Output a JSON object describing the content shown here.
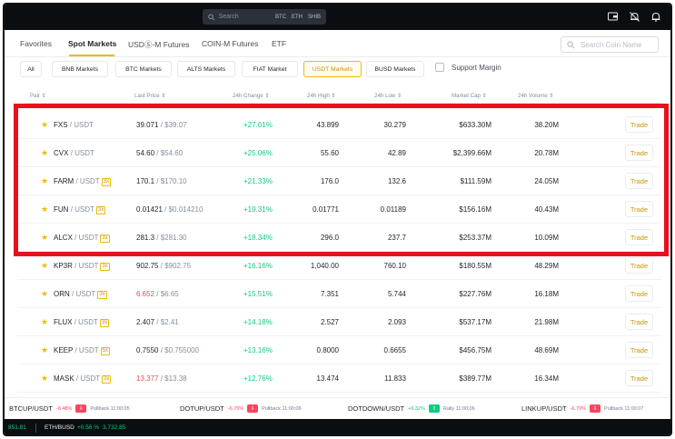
{
  "topbar": {
    "search_placeholder": "Search",
    "tags": [
      "BTC",
      "ETH",
      "SHIB"
    ],
    "icons": [
      "wallet-icon",
      "bell-filter-icon",
      "notification-icon"
    ]
  },
  "tabs": [
    {
      "label": "Favorites"
    },
    {
      "label": "Spot Markets"
    },
    {
      "label": "USDⓈ-M Futures"
    },
    {
      "label": "COIN-M Futures"
    },
    {
      "label": "ETF"
    }
  ],
  "coin_search_placeholder": "Search Coin Name",
  "filters": [
    {
      "label": "All"
    },
    {
      "label": "BNB Markets"
    },
    {
      "label": "BTC Markets"
    },
    {
      "label": "ALTS Markets"
    },
    {
      "label": "FIAT Market"
    },
    {
      "label": "USDT Markets"
    },
    {
      "label": "BUSD Markets"
    }
  ],
  "support_margin_label": "Support Margin",
  "columns": [
    "Pair",
    "Last Price",
    "24h Change",
    "24h High",
    "24h Low",
    "Market Cap",
    "24h Volume"
  ],
  "trade_label": "Trade",
  "rows": [
    {
      "base": "FXS",
      "quote": "/ USDT",
      "lev": "",
      "last": "39.071",
      "usd": "/ $39.07",
      "change": "+27.01%",
      "high": "43.899",
      "low": "30.279",
      "mcap": "$633.30M",
      "vol": "38.20M"
    },
    {
      "base": "CVX",
      "quote": "/ USDT",
      "lev": "",
      "last": "54.60",
      "usd": "/ $54.60",
      "change": "+25.06%",
      "high": "55.60",
      "low": "42.89",
      "mcap": "$2,399.66M",
      "vol": "20.78M"
    },
    {
      "base": "FARM",
      "quote": "/ USDT",
      "lev": "3x",
      "last": "170.1",
      "usd": "/ $170.10",
      "change": "+21.33%",
      "high": "176.0",
      "low": "132.6",
      "mcap": "$111.59M",
      "vol": "24.05M"
    },
    {
      "base": "FUN",
      "quote": "/ USDT",
      "lev": "3x",
      "last": "0.01421",
      "usd": "/ $0.014210",
      "change": "+19.31%",
      "high": "0.01771",
      "low": "0.01189",
      "mcap": "$156.16M",
      "vol": "40.43M"
    },
    {
      "base": "ALCX",
      "quote": "/ USDT",
      "lev": "3x",
      "last": "281.3",
      "usd": "/ $281.30",
      "change": "+18.34%",
      "high": "296.0",
      "low": "237.7",
      "mcap": "$253.37M",
      "vol": "10.09M"
    },
    {
      "base": "KP3R",
      "quote": "/ USDT",
      "lev": "3x",
      "last": "902.75",
      "usd": "/ $902.75",
      "change": "+16.16%",
      "high": "1,040.00",
      "low": "760.10",
      "mcap": "$180.55M",
      "vol": "48.29M"
    },
    {
      "base": "ORN",
      "quote": "/ USDT",
      "lev": "3x",
      "last": "6.652",
      "usd": "/ $6.65",
      "change": "+15.51%",
      "high": "7.351",
      "low": "5.744",
      "mcap": "$227.76M",
      "vol": "16.18M",
      "last_red": true
    },
    {
      "base": "FLUX",
      "quote": "/ USDT",
      "lev": "3x",
      "last": "2.407",
      "usd": "/ $2.41",
      "change": "+14.18%",
      "high": "2.527",
      "low": "2.093",
      "mcap": "$537.17M",
      "vol": "21.98M"
    },
    {
      "base": "KEEP",
      "quote": "/ USDT",
      "lev": "5x",
      "last": "0.7550",
      "usd": "/ $0.755000",
      "change": "+13.16%",
      "high": "0.8000",
      "low": "0.6655",
      "mcap": "$456.75M",
      "vol": "48.69M"
    },
    {
      "base": "MASK",
      "quote": "/ USDT",
      "lev": "3x",
      "last": "13.377",
      "usd": "/ $13.38",
      "change": "+12.76%",
      "high": "13.474",
      "low": "11.833",
      "mcap": "$389.77M",
      "vol": "16.34M",
      "last_red": true
    }
  ],
  "ticker": [
    {
      "pair": "BTCUP/USDT",
      "pct": "-8.48%",
      "dir": "down",
      "note": "Pullback 11:00:05"
    },
    {
      "pair": "DOTUP/USDT",
      "pct": "-6.75%",
      "dir": "down",
      "note": "Pullback 11:00:06"
    },
    {
      "pair": "DOTDOWN/USDT",
      "pct": "+9.32%",
      "dir": "up",
      "note": "Rally 11:00:06"
    },
    {
      "pair": "LINKUP/USDT",
      "pct": "-6.70%",
      "dir": "down",
      "note": "Pullback 11:00:07"
    }
  ],
  "statusbar": {
    "a": "851.81",
    "b": "ETH/BUSD",
    "c": "+0.56 %",
    "d": "3,732.85"
  },
  "colors": {
    "accent": "#f0b90b",
    "up": "#0ecb81",
    "down": "#f6465d",
    "highlight": "#e8101c"
  }
}
